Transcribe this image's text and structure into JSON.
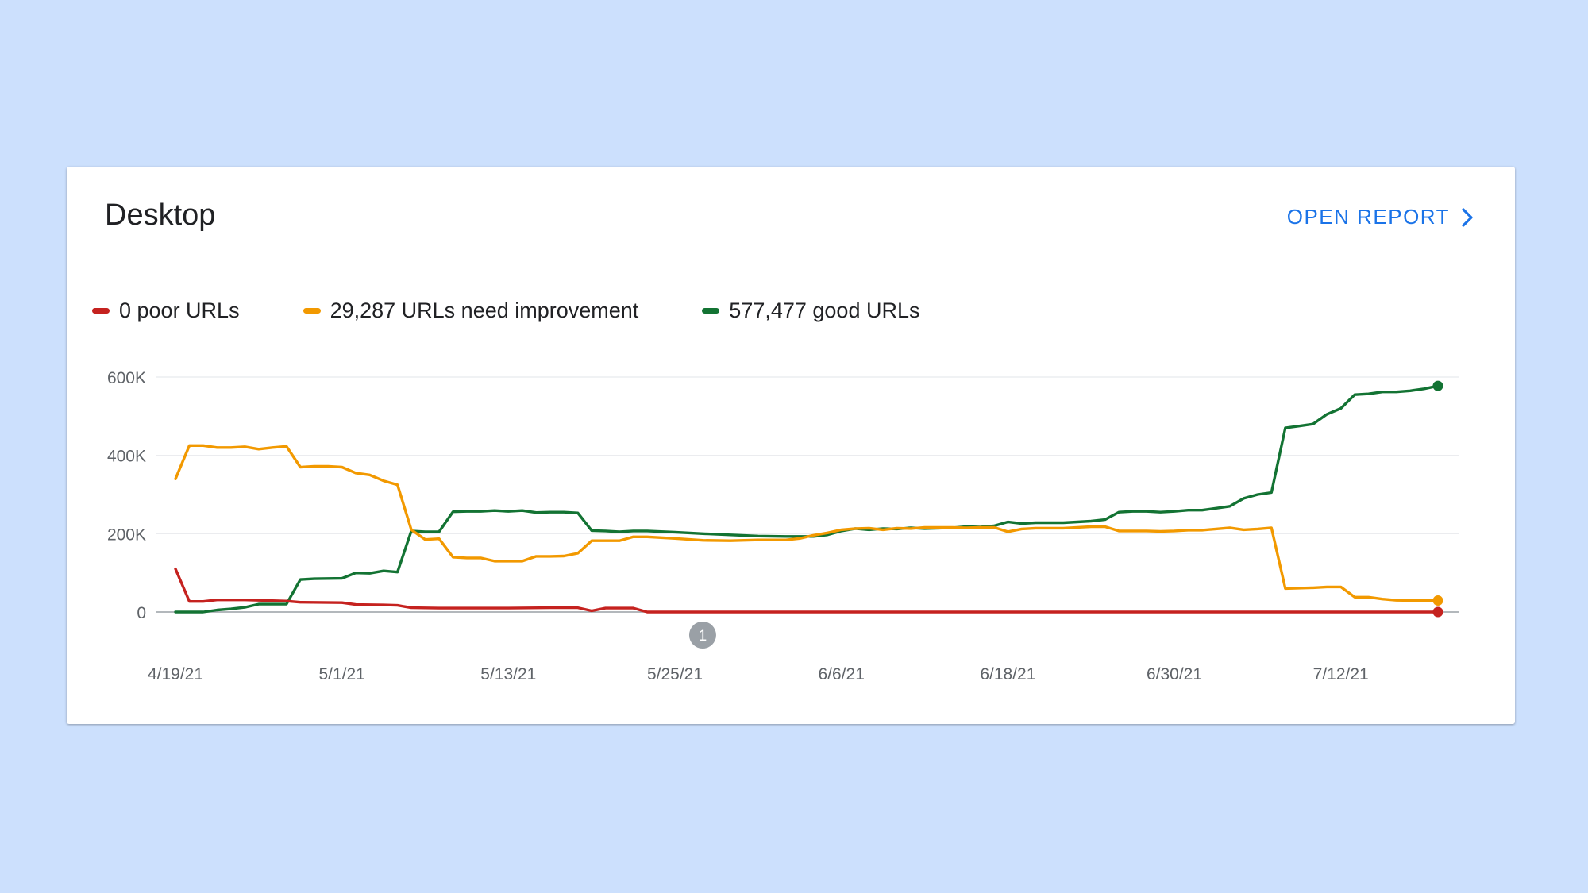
{
  "card": {
    "title": "Desktop",
    "open_report_label": "OPEN REPORT",
    "open_report_icon": "chevron-right-icon"
  },
  "colors": {
    "poor": "#c5221f",
    "needs_improvement": "#f29900",
    "good": "#137333",
    "link": "#1a73e8",
    "background": "#cce0fd"
  },
  "chart_data": {
    "type": "line",
    "title": "",
    "legend": [
      {
        "series": "poor",
        "label": "0 poor URLs"
      },
      {
        "series": "needs_improvement",
        "label": "29,287 URLs need improvement"
      },
      {
        "series": "good",
        "label": "577,477 good URLs"
      }
    ],
    "legend_position": "top-left",
    "grid": true,
    "x_start": "2021-04-19",
    "x_end": "2021-07-19",
    "x_ticks": [
      "2021-04-19",
      "2021-05-01",
      "2021-05-13",
      "2021-05-25",
      "2021-06-06",
      "2021-06-18",
      "2021-06-30",
      "2021-07-12"
    ],
    "x_tick_labels": [
      "4/19/21",
      "5/1/21",
      "5/13/21",
      "5/25/21",
      "6/6/21",
      "6/18/21",
      "6/30/21",
      "7/12/21"
    ],
    "y_ticks": [
      0,
      200000,
      400000,
      600000
    ],
    "y_tick_labels": [
      "0",
      "200K",
      "400K",
      "600K"
    ],
    "ylim": [
      0,
      600000
    ],
    "annotations": [
      {
        "date": "2021-05-27",
        "label": "1"
      }
    ],
    "series": [
      {
        "key": "good",
        "values": [
          [
            "2021-04-19",
            0
          ],
          [
            "2021-04-21",
            0
          ],
          [
            "2021-04-22",
            5000
          ],
          [
            "2021-04-23",
            8000
          ],
          [
            "2021-04-24",
            12000
          ],
          [
            "2021-04-25",
            20000
          ],
          [
            "2021-04-27",
            20000
          ],
          [
            "2021-04-28",
            83000
          ],
          [
            "2021-04-29",
            85000
          ],
          [
            "2021-05-01",
            86000
          ],
          [
            "2021-05-02",
            100000
          ],
          [
            "2021-05-03",
            99000
          ],
          [
            "2021-05-04",
            105000
          ],
          [
            "2021-05-05",
            102000
          ],
          [
            "2021-05-06",
            207000
          ],
          [
            "2021-05-07",
            205000
          ],
          [
            "2021-05-08",
            205000
          ],
          [
            "2021-05-09",
            256000
          ],
          [
            "2021-05-10",
            257000
          ],
          [
            "2021-05-11",
            257000
          ],
          [
            "2021-05-12",
            259000
          ],
          [
            "2021-05-13",
            257000
          ],
          [
            "2021-05-14",
            259000
          ],
          [
            "2021-05-15",
            254000
          ],
          [
            "2021-05-16",
            255000
          ],
          [
            "2021-05-17",
            255000
          ],
          [
            "2021-05-18",
            253000
          ],
          [
            "2021-05-19",
            208000
          ],
          [
            "2021-05-20",
            207000
          ],
          [
            "2021-05-21",
            205000
          ],
          [
            "2021-05-22",
            207000
          ],
          [
            "2021-05-23",
            207000
          ],
          [
            "2021-05-25",
            204000
          ],
          [
            "2021-05-27",
            200000
          ],
          [
            "2021-05-29",
            197000
          ],
          [
            "2021-05-31",
            194000
          ],
          [
            "2021-06-02",
            193000
          ],
          [
            "2021-06-04",
            193000
          ],
          [
            "2021-06-05",
            197000
          ],
          [
            "2021-06-06",
            207000
          ],
          [
            "2021-06-07",
            213000
          ],
          [
            "2021-06-08",
            210000
          ],
          [
            "2021-06-09",
            213000
          ],
          [
            "2021-06-10",
            212000
          ],
          [
            "2021-06-11",
            215000
          ],
          [
            "2021-06-12",
            213000
          ],
          [
            "2021-06-14",
            215000
          ],
          [
            "2021-06-15",
            218000
          ],
          [
            "2021-06-16",
            217000
          ],
          [
            "2021-06-17",
            220000
          ],
          [
            "2021-06-18",
            230000
          ],
          [
            "2021-06-19",
            226000
          ],
          [
            "2021-06-20",
            228000
          ],
          [
            "2021-06-22",
            228000
          ],
          [
            "2021-06-23",
            230000
          ],
          [
            "2021-06-24",
            232000
          ],
          [
            "2021-06-25",
            236000
          ],
          [
            "2021-06-26",
            255000
          ],
          [
            "2021-06-27",
            257000
          ],
          [
            "2021-06-28",
            257000
          ],
          [
            "2021-06-29",
            255000
          ],
          [
            "2021-06-30",
            257000
          ],
          [
            "2021-07-01",
            260000
          ],
          [
            "2021-07-02",
            260000
          ],
          [
            "2021-07-03",
            265000
          ],
          [
            "2021-07-04",
            270000
          ],
          [
            "2021-07-05",
            290000
          ],
          [
            "2021-07-06",
            300000
          ],
          [
            "2021-07-07",
            305000
          ],
          [
            "2021-07-08",
            470000
          ],
          [
            "2021-07-09",
            475000
          ],
          [
            "2021-07-10",
            480000
          ],
          [
            "2021-07-11",
            505000
          ],
          [
            "2021-07-12",
            520000
          ],
          [
            "2021-07-13",
            555000
          ],
          [
            "2021-07-14",
            557000
          ],
          [
            "2021-07-15",
            562000
          ],
          [
            "2021-07-16",
            562000
          ],
          [
            "2021-07-17",
            565000
          ],
          [
            "2021-07-18",
            570000
          ],
          [
            "2021-07-19",
            577477
          ]
        ]
      },
      {
        "key": "needs_improvement",
        "values": [
          [
            "2021-04-19",
            340000
          ],
          [
            "2021-04-20",
            425000
          ],
          [
            "2021-04-21",
            425000
          ],
          [
            "2021-04-22",
            420000
          ],
          [
            "2021-04-23",
            420000
          ],
          [
            "2021-04-24",
            422000
          ],
          [
            "2021-04-25",
            416000
          ],
          [
            "2021-04-26",
            420000
          ],
          [
            "2021-04-27",
            423000
          ],
          [
            "2021-04-28",
            370000
          ],
          [
            "2021-04-29",
            372000
          ],
          [
            "2021-04-30",
            372000
          ],
          [
            "2021-05-01",
            370000
          ],
          [
            "2021-05-02",
            355000
          ],
          [
            "2021-05-03",
            350000
          ],
          [
            "2021-05-04",
            335000
          ],
          [
            "2021-05-05",
            325000
          ],
          [
            "2021-05-06",
            210000
          ],
          [
            "2021-05-07",
            185000
          ],
          [
            "2021-05-08",
            187000
          ],
          [
            "2021-05-09",
            140000
          ],
          [
            "2021-05-10",
            138000
          ],
          [
            "2021-05-11",
            138000
          ],
          [
            "2021-05-12",
            130000
          ],
          [
            "2021-05-13",
            130000
          ],
          [
            "2021-05-14",
            130000
          ],
          [
            "2021-05-15",
            142000
          ],
          [
            "2021-05-16",
            142000
          ],
          [
            "2021-05-17",
            143000
          ],
          [
            "2021-05-18",
            150000
          ],
          [
            "2021-05-19",
            182000
          ],
          [
            "2021-05-20",
            182000
          ],
          [
            "2021-05-21",
            182000
          ],
          [
            "2021-05-22",
            192000
          ],
          [
            "2021-05-23",
            192000
          ],
          [
            "2021-05-25",
            188000
          ],
          [
            "2021-05-27",
            183000
          ],
          [
            "2021-05-29",
            182000
          ],
          [
            "2021-05-31",
            184000
          ],
          [
            "2021-06-02",
            184000
          ],
          [
            "2021-06-03",
            188000
          ],
          [
            "2021-06-04",
            196000
          ],
          [
            "2021-06-05",
            202000
          ],
          [
            "2021-06-06",
            210000
          ],
          [
            "2021-06-07",
            213000
          ],
          [
            "2021-06-08",
            214000
          ],
          [
            "2021-06-09",
            210000
          ],
          [
            "2021-06-10",
            214000
          ],
          [
            "2021-06-11",
            213000
          ],
          [
            "2021-06-12",
            216000
          ],
          [
            "2021-06-14",
            216000
          ],
          [
            "2021-06-15",
            215000
          ],
          [
            "2021-06-16",
            216000
          ],
          [
            "2021-06-17",
            216000
          ],
          [
            "2021-06-18",
            205000
          ],
          [
            "2021-06-19",
            212000
          ],
          [
            "2021-06-20",
            214000
          ],
          [
            "2021-06-22",
            214000
          ],
          [
            "2021-06-23",
            216000
          ],
          [
            "2021-06-24",
            218000
          ],
          [
            "2021-06-25",
            218000
          ],
          [
            "2021-06-26",
            207000
          ],
          [
            "2021-06-27",
            207000
          ],
          [
            "2021-06-28",
            207000
          ],
          [
            "2021-06-29",
            206000
          ],
          [
            "2021-06-30",
            207000
          ],
          [
            "2021-07-01",
            209000
          ],
          [
            "2021-07-02",
            209000
          ],
          [
            "2021-07-03",
            212000
          ],
          [
            "2021-07-04",
            215000
          ],
          [
            "2021-07-05",
            210000
          ],
          [
            "2021-07-06",
            212000
          ],
          [
            "2021-07-07",
            215000
          ],
          [
            "2021-07-08",
            60000
          ],
          [
            "2021-07-10",
            62000
          ],
          [
            "2021-07-11",
            64000
          ],
          [
            "2021-07-12",
            64000
          ],
          [
            "2021-07-13",
            38000
          ],
          [
            "2021-07-14",
            38000
          ],
          [
            "2021-07-15",
            33000
          ],
          [
            "2021-07-16",
            30000
          ],
          [
            "2021-07-17",
            29500
          ],
          [
            "2021-07-18",
            29300
          ],
          [
            "2021-07-19",
            29287
          ]
        ]
      },
      {
        "key": "poor",
        "values": [
          [
            "2021-04-19",
            110000
          ],
          [
            "2021-04-20",
            27000
          ],
          [
            "2021-04-21",
            27000
          ],
          [
            "2021-04-22",
            31000
          ],
          [
            "2021-04-24",
            31000
          ],
          [
            "2021-04-25",
            30000
          ],
          [
            "2021-04-26",
            29000
          ],
          [
            "2021-04-27",
            28000
          ],
          [
            "2021-04-28",
            25000
          ],
          [
            "2021-05-01",
            24000
          ],
          [
            "2021-05-02",
            19000
          ],
          [
            "2021-05-04",
            18000
          ],
          [
            "2021-05-05",
            17000
          ],
          [
            "2021-05-06",
            11000
          ],
          [
            "2021-05-08",
            10000
          ],
          [
            "2021-05-13",
            10000
          ],
          [
            "2021-05-16",
            11000
          ],
          [
            "2021-05-18",
            11000
          ],
          [
            "2021-05-19",
            3000
          ],
          [
            "2021-05-20",
            10000
          ],
          [
            "2021-05-22",
            10000
          ],
          [
            "2021-05-23",
            0
          ],
          [
            "2021-07-19",
            0
          ]
        ]
      }
    ]
  }
}
